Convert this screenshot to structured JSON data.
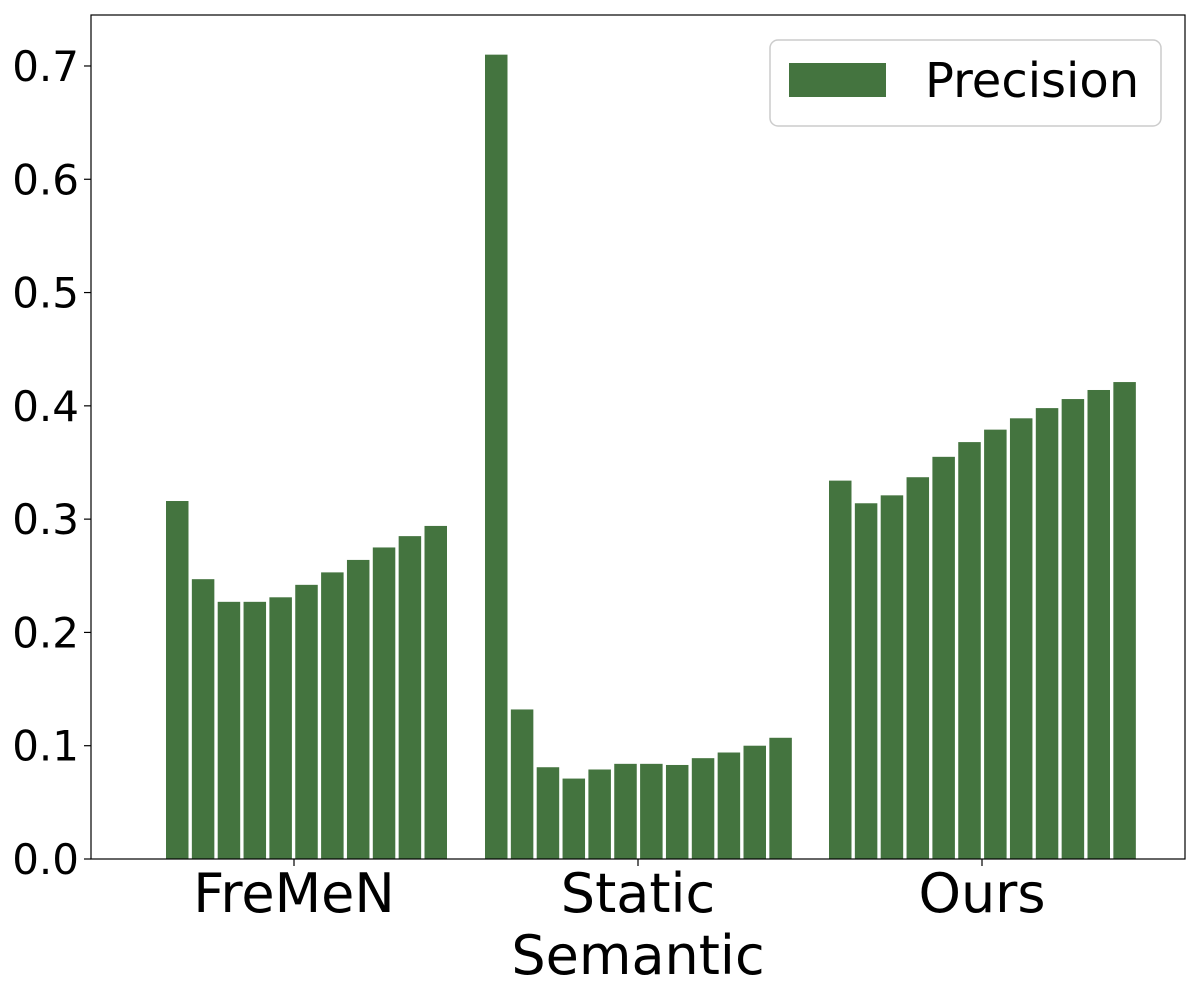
{
  "chart_data": {
    "type": "bar",
    "categories": [
      "FreMeN",
      "Static\nSemantic",
      "Ours"
    ],
    "series": [
      {
        "name": "Precision",
        "groups": [
          [
            0.316,
            0.247,
            0.227,
            0.227,
            0.231,
            0.242,
            0.253,
            0.264,
            0.275,
            0.285,
            0.294
          ],
          [
            0.71,
            0.132,
            0.081,
            0.071,
            0.079,
            0.084,
            0.084,
            0.083,
            0.089,
            0.094,
            0.1,
            0.107
          ],
          [
            0.334,
            0.314,
            0.321,
            0.337,
            0.355,
            0.368,
            0.379,
            0.389,
            0.398,
            0.406,
            0.414,
            0.421
          ]
        ]
      }
    ],
    "ylim": [
      0,
      0.745
    ],
    "yticks": [
      "0.0",
      "0.1",
      "0.2",
      "0.3",
      "0.4",
      "0.5",
      "0.6",
      "0.7"
    ],
    "bar_color": "#44743f",
    "legend": {
      "placement": "top-right",
      "label": "Precision"
    },
    "grid": false
  }
}
